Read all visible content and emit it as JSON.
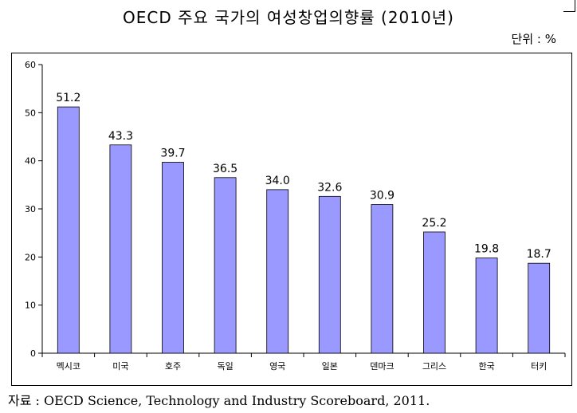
{
  "chart_data": {
    "type": "bar",
    "title": "OECD 주요 국가의 여성창업의향률 (2010년)",
    "unit": "단위 : %",
    "categories": [
      "멕시코",
      "미국",
      "호주",
      "독일",
      "영국",
      "일본",
      "덴마크",
      "그리스",
      "한국",
      "터키"
    ],
    "values": [
      51.2,
      43.3,
      39.7,
      36.5,
      34.0,
      32.6,
      30.9,
      25.2,
      19.8,
      18.7
    ],
    "value_labels": [
      "51.2",
      "43.3",
      "39.7",
      "36.5",
      "34.0",
      "32.6",
      "30.9",
      "25.2",
      "19.8",
      "18.7"
    ],
    "ylim": [
      0,
      60
    ],
    "yticks": [
      0,
      10,
      20,
      30,
      40,
      50,
      60
    ],
    "bar_color": "#9999ff",
    "grid": false,
    "legend": "none"
  },
  "source": "자료 : OECD Science, Technology and Industry Scoreboard, 2011."
}
